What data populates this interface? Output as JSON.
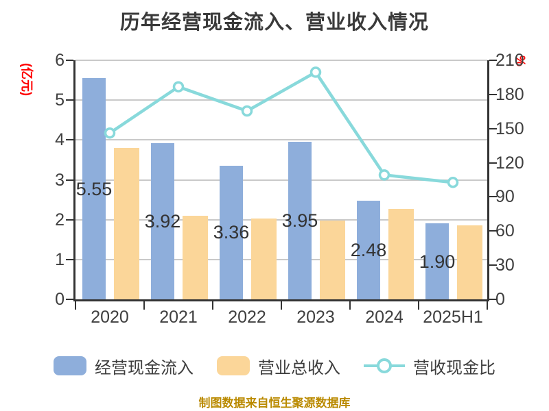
{
  "title": "历年经营现金流入、营业收入情况",
  "source_note": "制图数据来自恒生聚源数据库",
  "left_axis": {
    "unit_label": "(亿元)",
    "unit_color": "#ff0000",
    "ticks": [
      0,
      1,
      2,
      3,
      4,
      5,
      6
    ]
  },
  "right_axis": {
    "unit_label": "%",
    "unit_color": "#ff0000",
    "ticks": [
      0,
      30,
      60,
      90,
      120,
      150,
      180,
      210
    ]
  },
  "legend": {
    "items": [
      {
        "label": "经营现金流入",
        "type": "bar",
        "color": "#8eaedb"
      },
      {
        "label": "营业总收入",
        "type": "bar",
        "color": "#fbd699"
      },
      {
        "label": "营收现金比",
        "type": "line",
        "color": "#88d9db"
      }
    ]
  },
  "chart_data": {
    "type": "bar",
    "categories": [
      "2020",
      "2021",
      "2022",
      "2023",
      "2024",
      "2025H1"
    ],
    "series": [
      {
        "name": "经营现金流入",
        "chart": "bar",
        "axis": "left",
        "color": "#8eaedb",
        "values": [
          5.55,
          3.92,
          3.36,
          3.95,
          2.48,
          1.9
        ],
        "data_labels": [
          "5.55",
          "3.92",
          "3.36",
          "3.95",
          "2.48",
          "1.90"
        ]
      },
      {
        "name": "营业总收入",
        "chart": "bar",
        "axis": "left",
        "color": "#fbd699",
        "values": [
          3.8,
          2.1,
          2.03,
          1.98,
          2.27,
          1.85
        ]
      },
      {
        "name": "营收现金比",
        "chart": "line",
        "axis": "right",
        "color": "#88d9db",
        "marker_fill": "#ffffff",
        "values": [
          146.1,
          186.7,
          165.5,
          199.5,
          109.3,
          102.7
        ]
      }
    ],
    "title": "历年经营现金流入、营业收入情况",
    "xlabel": "",
    "ylabel_left": "(亿元)",
    "ylabel_right": "%",
    "ylim_left": [
      0,
      6
    ],
    "ylim_right": [
      0,
      210
    ],
    "grid": true,
    "legend_position": "bottom",
    "colors": {
      "text": "#3f3f3f",
      "grid": "#c9c9c9",
      "axis": "#333333",
      "source": "#ba8a00"
    }
  }
}
